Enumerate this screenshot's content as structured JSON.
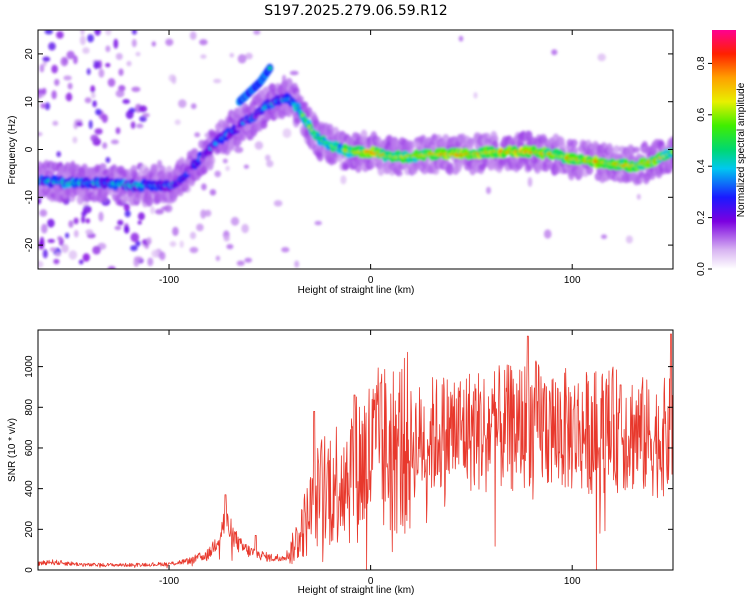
{
  "title": "S197.2025.279.06.59.R12",
  "chart_data": [
    {
      "type": "heatmap",
      "name": "spectrogram",
      "xlabel": "Height of straight line (km)",
      "ylabel": "Frequency (Hz)",
      "xlim": [
        -165,
        150
      ],
      "ylim": [
        -25,
        25
      ],
      "xticks": [
        -100,
        0,
        100
      ],
      "xtick_labels": [
        "-100",
        "0",
        "100"
      ],
      "yticks": [
        -20,
        -10,
        0,
        10,
        20
      ],
      "ytick_labels": [
        "-20",
        "-10",
        "0",
        "10",
        "20"
      ],
      "ridge": {
        "x": [
          -165,
          -150,
          -140,
          -130,
          -120,
          -110,
          -100,
          -95,
          -90,
          -85,
          -80,
          -75,
          -70,
          -65,
          -60,
          -55,
          -50,
          -45,
          -40,
          -35,
          -30,
          -25,
          -20,
          -15,
          -10,
          -5,
          0,
          10,
          20,
          30,
          40,
          50,
          60,
          70,
          80,
          90,
          100,
          110,
          120,
          130,
          140,
          150
        ],
        "y": [
          -6.5,
          -7,
          -7,
          -7,
          -7.5,
          -7.5,
          -7.5,
          -6.5,
          -4.5,
          -2,
          0,
          2,
          3.5,
          5,
          6.5,
          8,
          9.5,
          10.5,
          10.5,
          8,
          4.5,
          2,
          1,
          0,
          -0.5,
          -0.5,
          -0.5,
          -1.5,
          -1.5,
          -1,
          -1,
          -1,
          -0.5,
          -0.5,
          -0.5,
          -1,
          -2,
          -2.5,
          -3,
          -3.5,
          -2.5,
          -0.5
        ],
        "amplitude": [
          0.35,
          0.4,
          0.4,
          0.35,
          0.4,
          0.35,
          0.35,
          0.3,
          0.25,
          0.25,
          0.3,
          0.3,
          0.3,
          0.25,
          0.35,
          0.3,
          0.35,
          0.3,
          0.4,
          0.45,
          0.6,
          0.55,
          0.55,
          0.55,
          0.6,
          0.65,
          0.8,
          0.6,
          0.65,
          0.7,
          0.75,
          0.7,
          0.75,
          0.75,
          0.75,
          0.7,
          0.7,
          0.75,
          0.7,
          0.65,
          0.7,
          0.6
        ]
      },
      "secondary_branch": {
        "x": [
          -65,
          -60,
          -55,
          -50
        ],
        "y": [
          10,
          12,
          14,
          17
        ]
      },
      "colorbar": {
        "label": "Normalized spectral amplitude",
        "range": [
          0,
          0.93
        ],
        "ticks": [
          0.0,
          0.2,
          0.4,
          0.6,
          0.8
        ],
        "tick_labels": [
          "0.0",
          "0.2",
          "0.4",
          "0.6",
          "0.8"
        ]
      }
    },
    {
      "type": "line",
      "name": "snr",
      "color": "#e8382c",
      "xlabel": "Height of straight line (km)",
      "ylabel": "SNR (10 * v/v)",
      "xlim": [
        -165,
        150
      ],
      "ylim": [
        0,
        1180
      ],
      "xticks": [
        -100,
        0,
        100
      ],
      "xtick_labels": [
        "-100",
        "0",
        "100"
      ],
      "yticks": [
        0,
        200,
        400,
        600,
        800,
        1000
      ],
      "ytick_labels": [
        "0",
        "200",
        "400",
        "600",
        "800",
        "1000"
      ],
      "envelope_x": [
        -165,
        -160,
        -140,
        -120,
        -100,
        -90,
        -80,
        -75,
        -72,
        -70,
        -65,
        -60,
        -50,
        -45,
        -40,
        -35,
        -30,
        -25,
        -20,
        -10,
        0,
        10,
        20,
        30,
        40,
        50,
        60,
        70,
        80,
        90,
        100,
        110,
        120,
        130,
        140,
        150
      ],
      "envelope_y": [
        30,
        40,
        25,
        25,
        30,
        45,
        80,
        170,
        250,
        200,
        120,
        90,
        60,
        60,
        80,
        180,
        280,
        380,
        420,
        480,
        560,
        600,
        620,
        660,
        680,
        690,
        690,
        700,
        720,
        700,
        680,
        680,
        690,
        680,
        640,
        660
      ],
      "peaks": [
        {
          "x": -72,
          "y": 370
        },
        {
          "x": -57,
          "y": 170
        },
        {
          "x": -28,
          "y": 780
        },
        {
          "x": -8,
          "y": 860
        },
        {
          "x": 5,
          "y": 920
        },
        {
          "x": 78,
          "y": 1150
        },
        {
          "x": 124,
          "y": 910
        },
        {
          "x": 149,
          "y": 1160
        }
      ]
    }
  ]
}
